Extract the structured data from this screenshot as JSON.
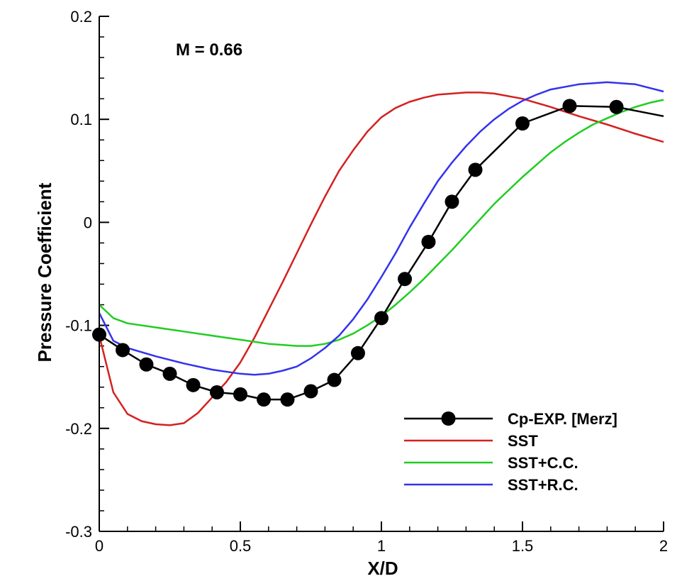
{
  "chart_data": {
    "type": "line",
    "title": "",
    "xlabel": "X/D",
    "ylabel": "Pressure Coefficient",
    "xlim": [
      0,
      2
    ],
    "ylim": [
      -0.3,
      0.2
    ],
    "x_ticks": [
      0,
      0.5,
      1,
      1.5,
      2
    ],
    "x_tick_labels": [
      "0",
      "0.5",
      "1",
      "1.5",
      "2"
    ],
    "y_ticks": [
      -0.3,
      -0.2,
      -0.1,
      0,
      0.1,
      0.2
    ],
    "y_tick_labels": [
      "-0.3",
      "-0.2",
      "-0.1",
      "0",
      "0.1",
      "0.2"
    ],
    "annotation": "M = 0.66",
    "legend_position": "bottom-right",
    "series": [
      {
        "name": "Cp-EXP. [Merz]",
        "color": "#000000",
        "markers": true,
        "x": [
          0,
          0.083,
          0.167,
          0.25,
          0.333,
          0.417,
          0.5,
          0.583,
          0.667,
          0.75,
          0.833,
          0.917,
          1.0,
          1.083,
          1.167,
          1.25,
          1.333,
          1.5,
          1.667,
          1.833,
          2.0
        ],
        "y": [
          -0.109,
          -0.124,
          -0.138,
          -0.147,
          -0.158,
          -0.165,
          -0.167,
          -0.172,
          -0.172,
          -0.164,
          -0.153,
          -0.127,
          -0.093,
          -0.055,
          -0.019,
          0.02,
          0.051,
          0.096,
          0.113,
          0.112,
          0.103
        ]
      },
      {
        "name": "SST",
        "color": "#d42020",
        "markers": false,
        "x": [
          0,
          0.05,
          0.1,
          0.15,
          0.2,
          0.25,
          0.3,
          0.35,
          0.4,
          0.45,
          0.5,
          0.55,
          0.6,
          0.65,
          0.7,
          0.75,
          0.8,
          0.85,
          0.9,
          0.95,
          1.0,
          1.05,
          1.1,
          1.15,
          1.2,
          1.25,
          1.3,
          1.35,
          1.4,
          1.5,
          1.6,
          1.7,
          1.8,
          1.9,
          2.0
        ],
        "y": [
          -0.11,
          -0.165,
          -0.186,
          -0.193,
          -0.196,
          -0.197,
          -0.195,
          -0.185,
          -0.17,
          -0.155,
          -0.136,
          -0.112,
          -0.085,
          -0.058,
          -0.03,
          -0.002,
          0.025,
          0.05,
          0.07,
          0.088,
          0.102,
          0.111,
          0.117,
          0.121,
          0.124,
          0.125,
          0.126,
          0.126,
          0.125,
          0.12,
          0.112,
          0.103,
          0.095,
          0.086,
          0.078
        ]
      },
      {
        "name": "SST+C.C.",
        "color": "#22cc22",
        "markers": false,
        "x": [
          0,
          0.05,
          0.1,
          0.2,
          0.3,
          0.4,
          0.5,
          0.6,
          0.7,
          0.75,
          0.8,
          0.85,
          0.9,
          0.95,
          1.0,
          1.05,
          1.1,
          1.15,
          1.2,
          1.25,
          1.3,
          1.35,
          1.4,
          1.45,
          1.5,
          1.55,
          1.6,
          1.65,
          1.7,
          1.75,
          1.8,
          1.85,
          1.9,
          1.95,
          2.0
        ],
        "y": [
          -0.08,
          -0.093,
          -0.098,
          -0.102,
          -0.106,
          -0.11,
          -0.114,
          -0.118,
          -0.12,
          -0.12,
          -0.118,
          -0.114,
          -0.108,
          -0.1,
          -0.091,
          -0.08,
          -0.068,
          -0.055,
          -0.041,
          -0.027,
          -0.012,
          0.003,
          0.018,
          0.031,
          0.044,
          0.056,
          0.068,
          0.078,
          0.087,
          0.095,
          0.101,
          0.107,
          0.112,
          0.116,
          0.119
        ]
      },
      {
        "name": "SST+R.C.",
        "color": "#3333ee",
        "markers": false,
        "x": [
          0,
          0.05,
          0.1,
          0.2,
          0.3,
          0.4,
          0.5,
          0.55,
          0.6,
          0.65,
          0.7,
          0.75,
          0.8,
          0.85,
          0.9,
          0.95,
          1.0,
          1.05,
          1.1,
          1.15,
          1.2,
          1.25,
          1.3,
          1.35,
          1.4,
          1.45,
          1.5,
          1.55,
          1.6,
          1.7,
          1.8,
          1.9,
          2.0
        ],
        "y": [
          -0.088,
          -0.115,
          -0.122,
          -0.13,
          -0.137,
          -0.143,
          -0.147,
          -0.148,
          -0.147,
          -0.144,
          -0.14,
          -0.132,
          -0.122,
          -0.11,
          -0.094,
          -0.075,
          -0.053,
          -0.03,
          -0.005,
          0.018,
          0.04,
          0.058,
          0.074,
          0.088,
          0.1,
          0.11,
          0.118,
          0.124,
          0.129,
          0.134,
          0.136,
          0.134,
          0.127
        ]
      }
    ]
  }
}
